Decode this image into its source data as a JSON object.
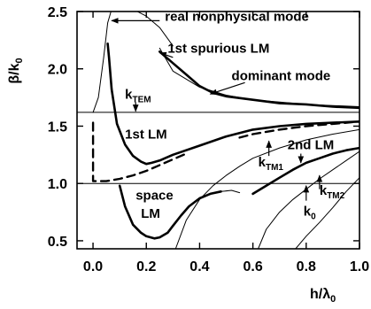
{
  "chart_data": {
    "type": "line",
    "title": "",
    "xlabel": {
      "base": "h/λ",
      "sub": "0"
    },
    "ylabel": {
      "base": "β/k",
      "sub": "0"
    },
    "xlim": [
      -0.06,
      1.0
    ],
    "ylim": [
      0.43,
      2.5
    ],
    "grid": false,
    "x_ticks": [
      0.0,
      0.2,
      0.4,
      0.6,
      0.8,
      1.0
    ],
    "x_tick_labels": [
      "0.0",
      "0.2",
      "0.4",
      "0.6",
      "0.8",
      "1.0"
    ],
    "y_ticks": [
      0.5,
      1.0,
      1.5,
      2.0,
      2.5
    ],
    "y_tick_labels": [
      "0.5",
      "1.0",
      "1.5",
      "2.0",
      "2.5"
    ],
    "reference_levels": [
      {
        "y": 1.62,
        "label": "k",
        "label_sub": "TEM",
        "label_x": 0.12,
        "label_y": 1.74,
        "arrow_to": [
          0.16,
          1.63
        ]
      },
      {
        "y": 1.0
      }
    ],
    "annotations": [
      {
        "text": "real nonphysical mode",
        "x": 0.27,
        "y": 2.42,
        "arrow_from": [
          0.25,
          2.42
        ],
        "arrow_to": [
          0.07,
          2.42
        ]
      },
      {
        "text": "1st spurious LM",
        "x": 0.28,
        "y": 2.14,
        "arrow_from": [
          0.3,
          2.1
        ],
        "arrow_to": [
          0.25,
          2.14
        ]
      },
      {
        "text": "dominant mode",
        "x": 0.52,
        "y": 1.9,
        "arrow_from": [
          0.57,
          1.88
        ],
        "arrow_to": [
          0.44,
          1.78
        ]
      },
      {
        "text": "1st LM",
        "x": 0.12,
        "y": 1.39
      },
      {
        "text": "2nd LM",
        "x": 0.73,
        "y": 1.3,
        "arrow_from": [
          0.78,
          1.26
        ],
        "arrow_to": [
          0.78,
          1.18
        ]
      },
      {
        "text": "k",
        "sub": "TM1",
        "x": 0.62,
        "y": 1.15,
        "arrow_from": [
          0.66,
          1.24
        ],
        "arrow_to": [
          0.66,
          1.37
        ]
      },
      {
        "text": "k",
        "sub": "TM2",
        "x": 0.85,
        "y": 0.9,
        "arrow_from": [
          0.85,
          0.95
        ],
        "arrow_to": [
          0.85,
          1.07
        ]
      },
      {
        "text": "k",
        "sub": "0",
        "x": 0.79,
        "y": 0.72,
        "arrow_from": [
          0.8,
          0.85
        ],
        "arrow_to": [
          0.8,
          0.98
        ]
      },
      {
        "text": "space",
        "x": 0.16,
        "y": 0.86
      },
      {
        "text": "LM",
        "x": 0.18,
        "y": 0.7
      }
    ],
    "series": [
      {
        "style": "thin",
        "x": [
          0.0,
          0.02,
          0.04,
          0.055,
          0.07,
          0.1,
          0.15,
          0.2,
          0.25,
          0.3
        ],
        "y": [
          1.62,
          1.75,
          2.1,
          2.4,
          2.52,
          2.54,
          2.52,
          2.46,
          2.36,
          2.2
        ]
      },
      {
        "style": "thin",
        "x": [
          0.25,
          0.3,
          0.4,
          0.5,
          0.6,
          0.7,
          0.8,
          0.9,
          1.0
        ],
        "y": [
          2.18,
          1.98,
          1.84,
          1.77,
          1.73,
          1.71,
          1.69,
          1.68,
          1.67
        ]
      },
      {
        "style": "thick",
        "x": [
          0.055,
          0.06,
          0.07,
          0.09,
          0.12,
          0.15,
          0.18,
          0.2,
          0.22,
          0.25,
          0.3,
          0.4,
          0.5,
          0.6,
          0.7,
          0.8,
          0.9,
          1.0
        ],
        "y": [
          2.22,
          2.1,
          1.82,
          1.52,
          1.34,
          1.24,
          1.19,
          1.17,
          1.18,
          1.2,
          1.25,
          1.33,
          1.41,
          1.47,
          1.5,
          1.52,
          1.53,
          1.54
        ]
      },
      {
        "style": "thick",
        "x": [
          0.25,
          0.3,
          0.35,
          0.4,
          0.45,
          0.5,
          0.6,
          0.7,
          0.8,
          0.9,
          1.0
        ],
        "y": [
          2.15,
          2.05,
          1.95,
          1.85,
          1.79,
          1.76,
          1.73,
          1.7,
          1.69,
          1.67,
          1.66
        ]
      },
      {
        "style": "dashed",
        "x": [
          0.0,
          0.0,
          0.05,
          0.1,
          0.15,
          0.2,
          0.25,
          0.3,
          0.35
        ],
        "y": [
          1.53,
          1.02,
          1.02,
          1.04,
          1.07,
          1.11,
          1.16,
          1.21,
          1.26
        ]
      },
      {
        "style": "dashed",
        "x": [
          0.55,
          0.6,
          0.7,
          0.8,
          0.9,
          1.0
        ],
        "y": [
          1.4,
          1.43,
          1.47,
          1.5,
          1.52,
          1.54
        ]
      },
      {
        "style": "thick",
        "x": [
          0.1,
          0.12,
          0.15,
          0.18,
          0.2,
          0.23,
          0.25,
          0.28,
          0.3,
          0.33,
          0.36,
          0.4,
          0.44,
          0.48
        ],
        "y": [
          0.98,
          0.8,
          0.64,
          0.57,
          0.54,
          0.52,
          0.53,
          0.57,
          0.63,
          0.72,
          0.8,
          0.87,
          0.91,
          0.93
        ]
      },
      {
        "style": "thin",
        "x": [
          0.48,
          0.52,
          0.55
        ],
        "y": [
          0.93,
          0.94,
          0.92
        ]
      },
      {
        "style": "thick",
        "x": [
          0.6,
          0.65,
          0.7,
          0.75,
          0.8,
          0.85,
          0.9,
          0.95,
          1.0
        ],
        "y": [
          0.91,
          0.98,
          1.05,
          1.12,
          1.18,
          1.22,
          1.26,
          1.29,
          1.31
        ]
      },
      {
        "style": "thin",
        "x": [
          0.31,
          0.35,
          0.4,
          0.45,
          0.5,
          0.55,
          0.6,
          0.7,
          0.8,
          0.9,
          1.0
        ],
        "y": [
          0.43,
          0.68,
          0.86,
          0.98,
          1.07,
          1.15,
          1.22,
          1.31,
          1.38,
          1.43,
          1.47
        ]
      },
      {
        "style": "thin",
        "x": [
          0.62,
          0.65,
          0.7,
          0.75,
          0.8,
          0.85,
          0.9,
          0.95,
          1.0
        ],
        "y": [
          0.43,
          0.6,
          0.75,
          0.86,
          0.95,
          1.04,
          1.12,
          1.2,
          1.28
        ]
      },
      {
        "style": "thin",
        "x": [
          0.76,
          0.8,
          0.85,
          0.9,
          0.95,
          1.0
        ],
        "y": [
          0.43,
          0.54,
          0.66,
          0.79,
          0.93,
          1.05
        ]
      }
    ]
  }
}
